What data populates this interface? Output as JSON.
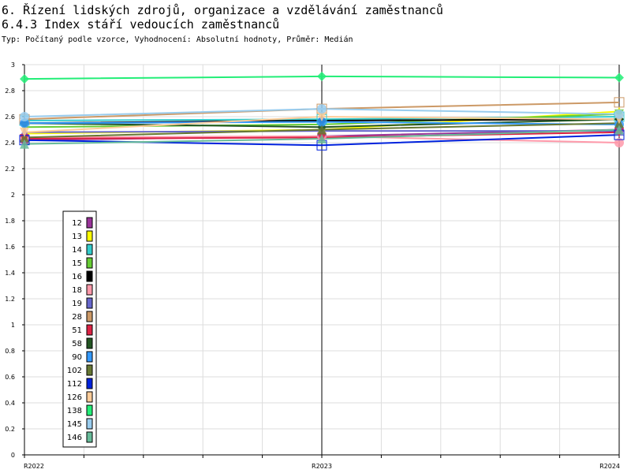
{
  "header": {
    "title_line1": "6. Řízení lidských zdrojů, organizace a vzdělávání zaměstnanců",
    "title_line2": "6.4.3 Index stáří vedoucích zaměstnanců",
    "subtitle": "Typ: Počítaný podle vzorce, Vyhodnocení: Absolutní hodnoty, Průměr: Medián"
  },
  "chart_data": {
    "type": "line",
    "title": "6.4.3 Index stáří vedoucích zaměstnanců",
    "categories": [
      "R2022",
      "R2023",
      "R2024"
    ],
    "ylim": [
      0,
      3
    ],
    "yticks": [
      "0",
      "0.2",
      "0.4",
      "0.6",
      "0.8",
      "1",
      "1.2",
      "1.4",
      "1.6",
      "1.8",
      "2",
      "2.2",
      "2.4",
      "2.6",
      "2.8",
      "3"
    ],
    "grid": true,
    "legend_position": "left",
    "series": [
      {
        "name": "12",
        "color": "#993399",
        "values": [
          2.42,
          2.45,
          2.5
        ]
      },
      {
        "name": "13",
        "color": "#ffff00",
        "values": [
          2.47,
          2.5,
          2.64
        ]
      },
      {
        "name": "14",
        "color": "#33cccc",
        "values": [
          2.57,
          2.58,
          2.6
        ]
      },
      {
        "name": "15",
        "color": "#66cc33",
        "values": [
          2.52,
          2.54,
          2.62
        ]
      },
      {
        "name": "16",
        "color": "#000000",
        "values": [
          2.55,
          2.57,
          2.58
        ]
      },
      {
        "name": "18",
        "color": "#ff99aa",
        "values": [
          2.44,
          2.45,
          2.4
        ]
      },
      {
        "name": "19",
        "color": "#6666cc",
        "values": [
          2.48,
          2.49,
          2.49
        ]
      },
      {
        "name": "28",
        "color": "#cc9966",
        "values": [
          2.58,
          2.66,
          2.71
        ]
      },
      {
        "name": "51",
        "color": "#dd2244",
        "values": [
          2.43,
          2.44,
          2.48
        ]
      },
      {
        "name": "58",
        "color": "#225522",
        "values": [
          2.55,
          2.52,
          2.58
        ]
      },
      {
        "name": "90",
        "color": "#3399ff",
        "values": [
          2.55,
          2.56,
          2.54
        ]
      },
      {
        "name": "102",
        "color": "#667733",
        "values": [
          2.44,
          2.5,
          2.55
        ]
      },
      {
        "name": "112",
        "color": "#0022dd",
        "values": [
          2.42,
          2.38,
          2.46
        ]
      },
      {
        "name": "126",
        "color": "#ffcc99",
        "values": [
          2.48,
          2.6,
          2.58
        ]
      },
      {
        "name": "138",
        "color": "#22ee77",
        "values": [
          2.89,
          2.91,
          2.9
        ]
      },
      {
        "name": "145",
        "color": "#99ccee",
        "values": [
          2.6,
          2.66,
          2.62
        ]
      },
      {
        "name": "146",
        "color": "#66bb99",
        "values": [
          2.39,
          2.43,
          2.5
        ]
      }
    ]
  }
}
